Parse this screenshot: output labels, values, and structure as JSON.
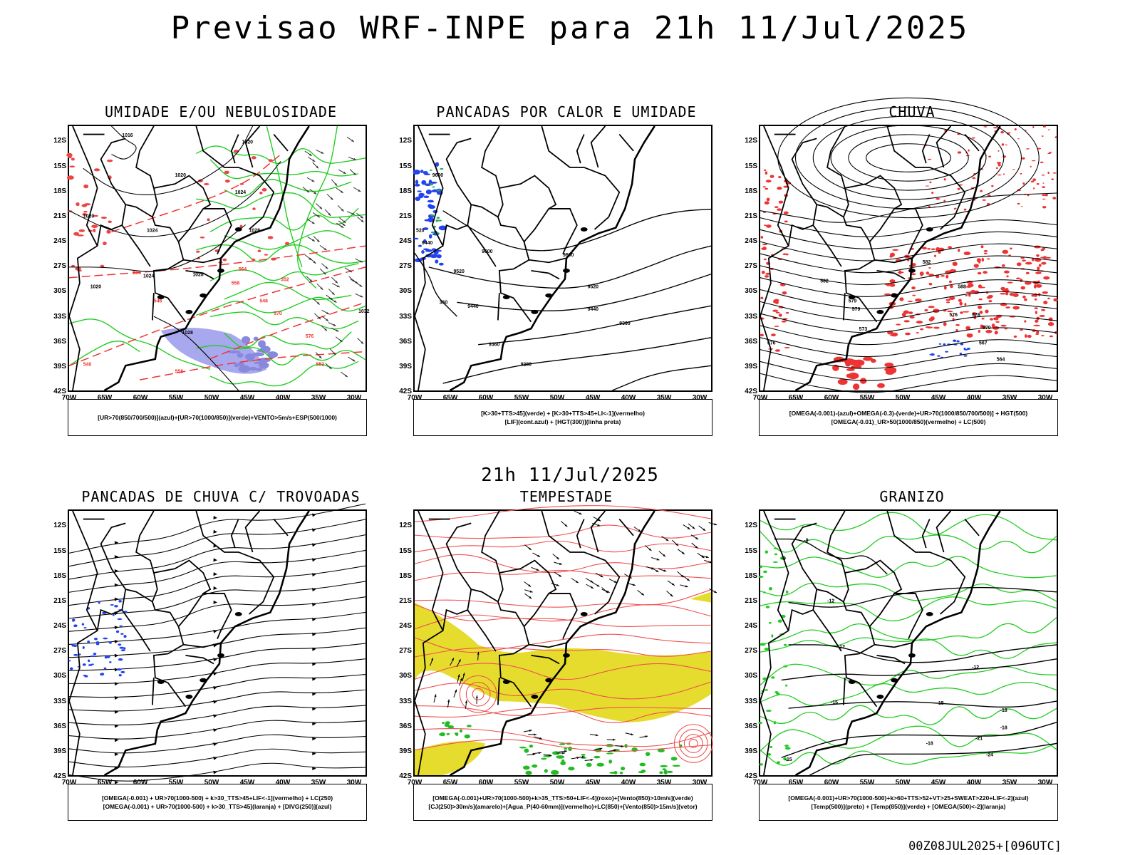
{
  "title": "Previsao WRF-INPE  para 21h 11/Jul/2025",
  "mid_title": "21h 11/Jul/2025",
  "footer": "00Z08JUL2025+[096UTC]",
  "lat_labels": [
    "12S",
    "15S",
    "18S",
    "21S",
    "24S",
    "27S",
    "30S",
    "33S",
    "36S",
    "39S",
    "42S"
  ],
  "lon_labels": [
    "70W",
    "65W",
    "60W",
    "55W",
    "50W",
    "45W",
    "40W",
    "35W",
    "30W"
  ],
  "panels": [
    {
      "title": "UMIDADE E/OU NEBULOSIDADE",
      "legend": [
        "[UR>70(850/700/500)](azul)+[UR>70(1000/850)](verde)+VENTO>5m/s+ESP(500/1000)"
      ],
      "contour_labels": [
        "1016",
        "1020",
        "1020",
        "1024",
        "1020",
        "1024",
        "1028",
        "1028",
        "1020",
        "1024",
        "1028",
        "1032",
        "564",
        "558",
        "552",
        "546",
        "546",
        "570",
        "576",
        "540",
        "558",
        "552",
        "564"
      ]
    },
    {
      "title": "PANCADAS POR CALOR E UMIDADE",
      "legend": [
        "[K>30+TTS>45](verde)  +  [K>30+TTS>45+LI<-1](vermelho)",
        "[LIF](cont.azul)  +  [HGT(300)](linha preta)"
      ],
      "contour_labels": [
        "9600",
        "9600",
        "9600",
        "9520",
        "9520",
        "9440",
        "9440",
        "9360",
        "9360",
        "9280",
        "520",
        "9440",
        "360"
      ]
    },
    {
      "title": "CHUVA",
      "legend": [
        "[OMEGA(-0.001)-(azul)+OMEGA(-0.3)-(verde)+UR>70(1000/850/700/500)]  +  HGT(500)",
        "[OMEGA(-0.01)_UR>50(1000/850)(vermelho) + LC(500)"
      ],
      "contour_labels": [
        "582",
        "588",
        "582",
        "579",
        "576",
        "576",
        "573",
        "570",
        "567",
        "564",
        "576",
        "579"
      ]
    },
    {
      "title": "PANCADAS DE CHUVA C/ TROVOADAS",
      "legend": [
        "[OMEGA(-0.001) + UR>70(1000-500) + k>30_TTS>45+LIF<-1](vermelho) + LC(250)",
        "[OMEGA(-0.001) + UR>70(1000-500) + k>30_TTS>45](laranja) + [DIVG(250)](azul)"
      ],
      "contour_labels": []
    },
    {
      "title": "TEMPESTADE",
      "legend": [
        "[OMEGA(-0.001)+UR>70(1000-500)+k>35_TTS>50+LIF<-4](roxo)+[Vento(850)>10m/s](verde)",
        "[CJ(250)>30m/s](amarelo)+[Agua_P(40-60mm)](vermelho)+LC(850)+[Vento(850)>15m/s](vetor)"
      ],
      "contour_labels": []
    },
    {
      "title": "GRANIZO",
      "legend": [
        "[OMEGA(-0.001)+UR>70(1000-500)+k>60+TTS>52+VT>25+SWEAT>220+LIF<-2](azul)",
        "[Temp(500)](preto) + [Temp(850)](verde) + [OMEGA(500)<-2](laranja)"
      ],
      "contour_labels": [
        "-9",
        "-12",
        "-12",
        "-15",
        "-15",
        "-18",
        "-18",
        "-21",
        "-24",
        "-18",
        "-9",
        "-12",
        "-15"
      ]
    }
  ],
  "colors": {
    "coast": "#000000",
    "contour": "#000000",
    "humid_green": "#22cc22",
    "rain_red": "#ee3333",
    "dash_red": "#ee3333",
    "blue": "#2244ee",
    "lavender": "#9999ee",
    "jet_yellow": "#e6dc2e",
    "streamline_red": "#f05050"
  }
}
